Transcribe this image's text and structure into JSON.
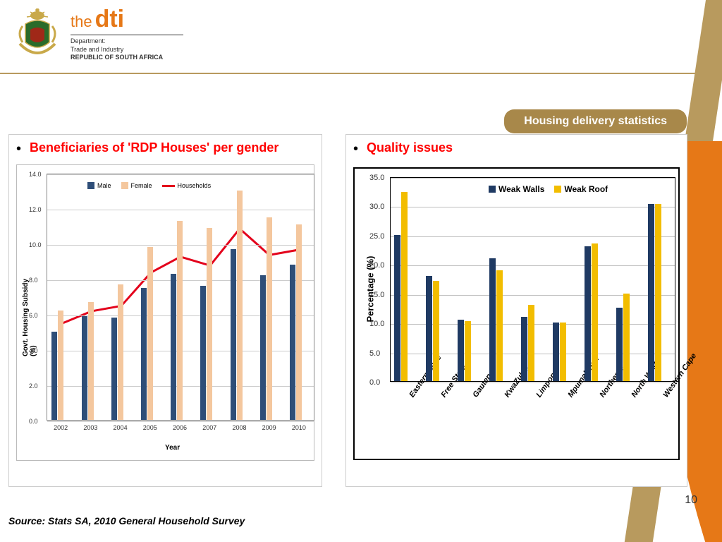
{
  "header": {
    "brand_the": "the",
    "brand_dti": "dti",
    "dept_line1": "Department:",
    "dept_line2": "Trade and Industry",
    "dept_line3": "REPUBLIC OF SOUTH AFRICA",
    "emblem_colors": {
      "gold": "#c9a94a",
      "green": "#2a6b2a",
      "red": "#a02818",
      "black": "#222"
    }
  },
  "swoosh_colors": [
    "#b89a5e",
    "#e67817"
  ],
  "tab_label": "Housing delivery statistics",
  "tab_bg": "#a8884a",
  "page_number": "10",
  "source_text": "Source: Stats SA, 2010 General Household Survey",
  "chart1": {
    "title": "Beneficiaries of 'RDP Houses' per gender",
    "type": "grouped-bar-with-line",
    "ylabel": "Govt. Housing Subsidy (%)",
    "xlabel": "Year",
    "ylim": [
      0.0,
      14.0
    ],
    "ytick_step": 2.0,
    "yticks": [
      "0.0",
      "2.0",
      "4.0",
      "6.0",
      "8.0",
      "10.0",
      "12.0",
      "14.0"
    ],
    "categories": [
      "2002",
      "2003",
      "2004",
      "2005",
      "2006",
      "2007",
      "2008",
      "2009",
      "2010"
    ],
    "series": {
      "male": {
        "label": "Male",
        "color": "#2e4e78",
        "values": [
          5.0,
          5.9,
          5.8,
          7.5,
          8.3,
          7.6,
          9.7,
          8.2,
          8.8
        ]
      },
      "female": {
        "label": "Female",
        "color": "#f4c79e",
        "values": [
          6.2,
          6.7,
          7.7,
          9.8,
          11.3,
          10.9,
          13.0,
          11.5,
          11.1
        ]
      },
      "households": {
        "label": "Households",
        "color": "#e3001b",
        "values": [
          5.5,
          6.2,
          6.5,
          8.4,
          9.3,
          8.8,
          10.9,
          9.4,
          9.7
        ]
      }
    },
    "grid_color": "#cccccc",
    "bar_width": 0.38,
    "plot_bg": "#ffffff"
  },
  "chart2": {
    "title": "Quality issues",
    "type": "grouped-bar",
    "ylabel": "Percentage (%)",
    "ylim": [
      0.0,
      35.0
    ],
    "ytick_step": 5.0,
    "yticks": [
      "0.0",
      "5.0",
      "10.0",
      "15.0",
      "20.0",
      "25.0",
      "30.0",
      "35.0"
    ],
    "categories": [
      "Eastern Cape",
      "Free State",
      "Gauteng",
      "KwaZulu…",
      "Limpopo",
      "Mpumalanga",
      "Northern…",
      "North West",
      "Western Cape"
    ],
    "series": {
      "walls": {
        "label": "Weak Walls",
        "color": "#1f3a63",
        "values": [
          25.0,
          18.0,
          10.5,
          21.0,
          11.0,
          10.0,
          23.0,
          12.5,
          30.3
        ]
      },
      "roof": {
        "label": "Weak Roof",
        "color": "#f2bd00",
        "values": [
          32.3,
          17.2,
          10.3,
          19.0,
          13.0,
          10.0,
          23.5,
          15.0,
          30.3
        ]
      }
    },
    "grid_color": "#bfbfbf",
    "bar_width": 0.4,
    "label_fontsize": 13,
    "plot_bg": "#ffffff",
    "border_color": "#000000"
  }
}
